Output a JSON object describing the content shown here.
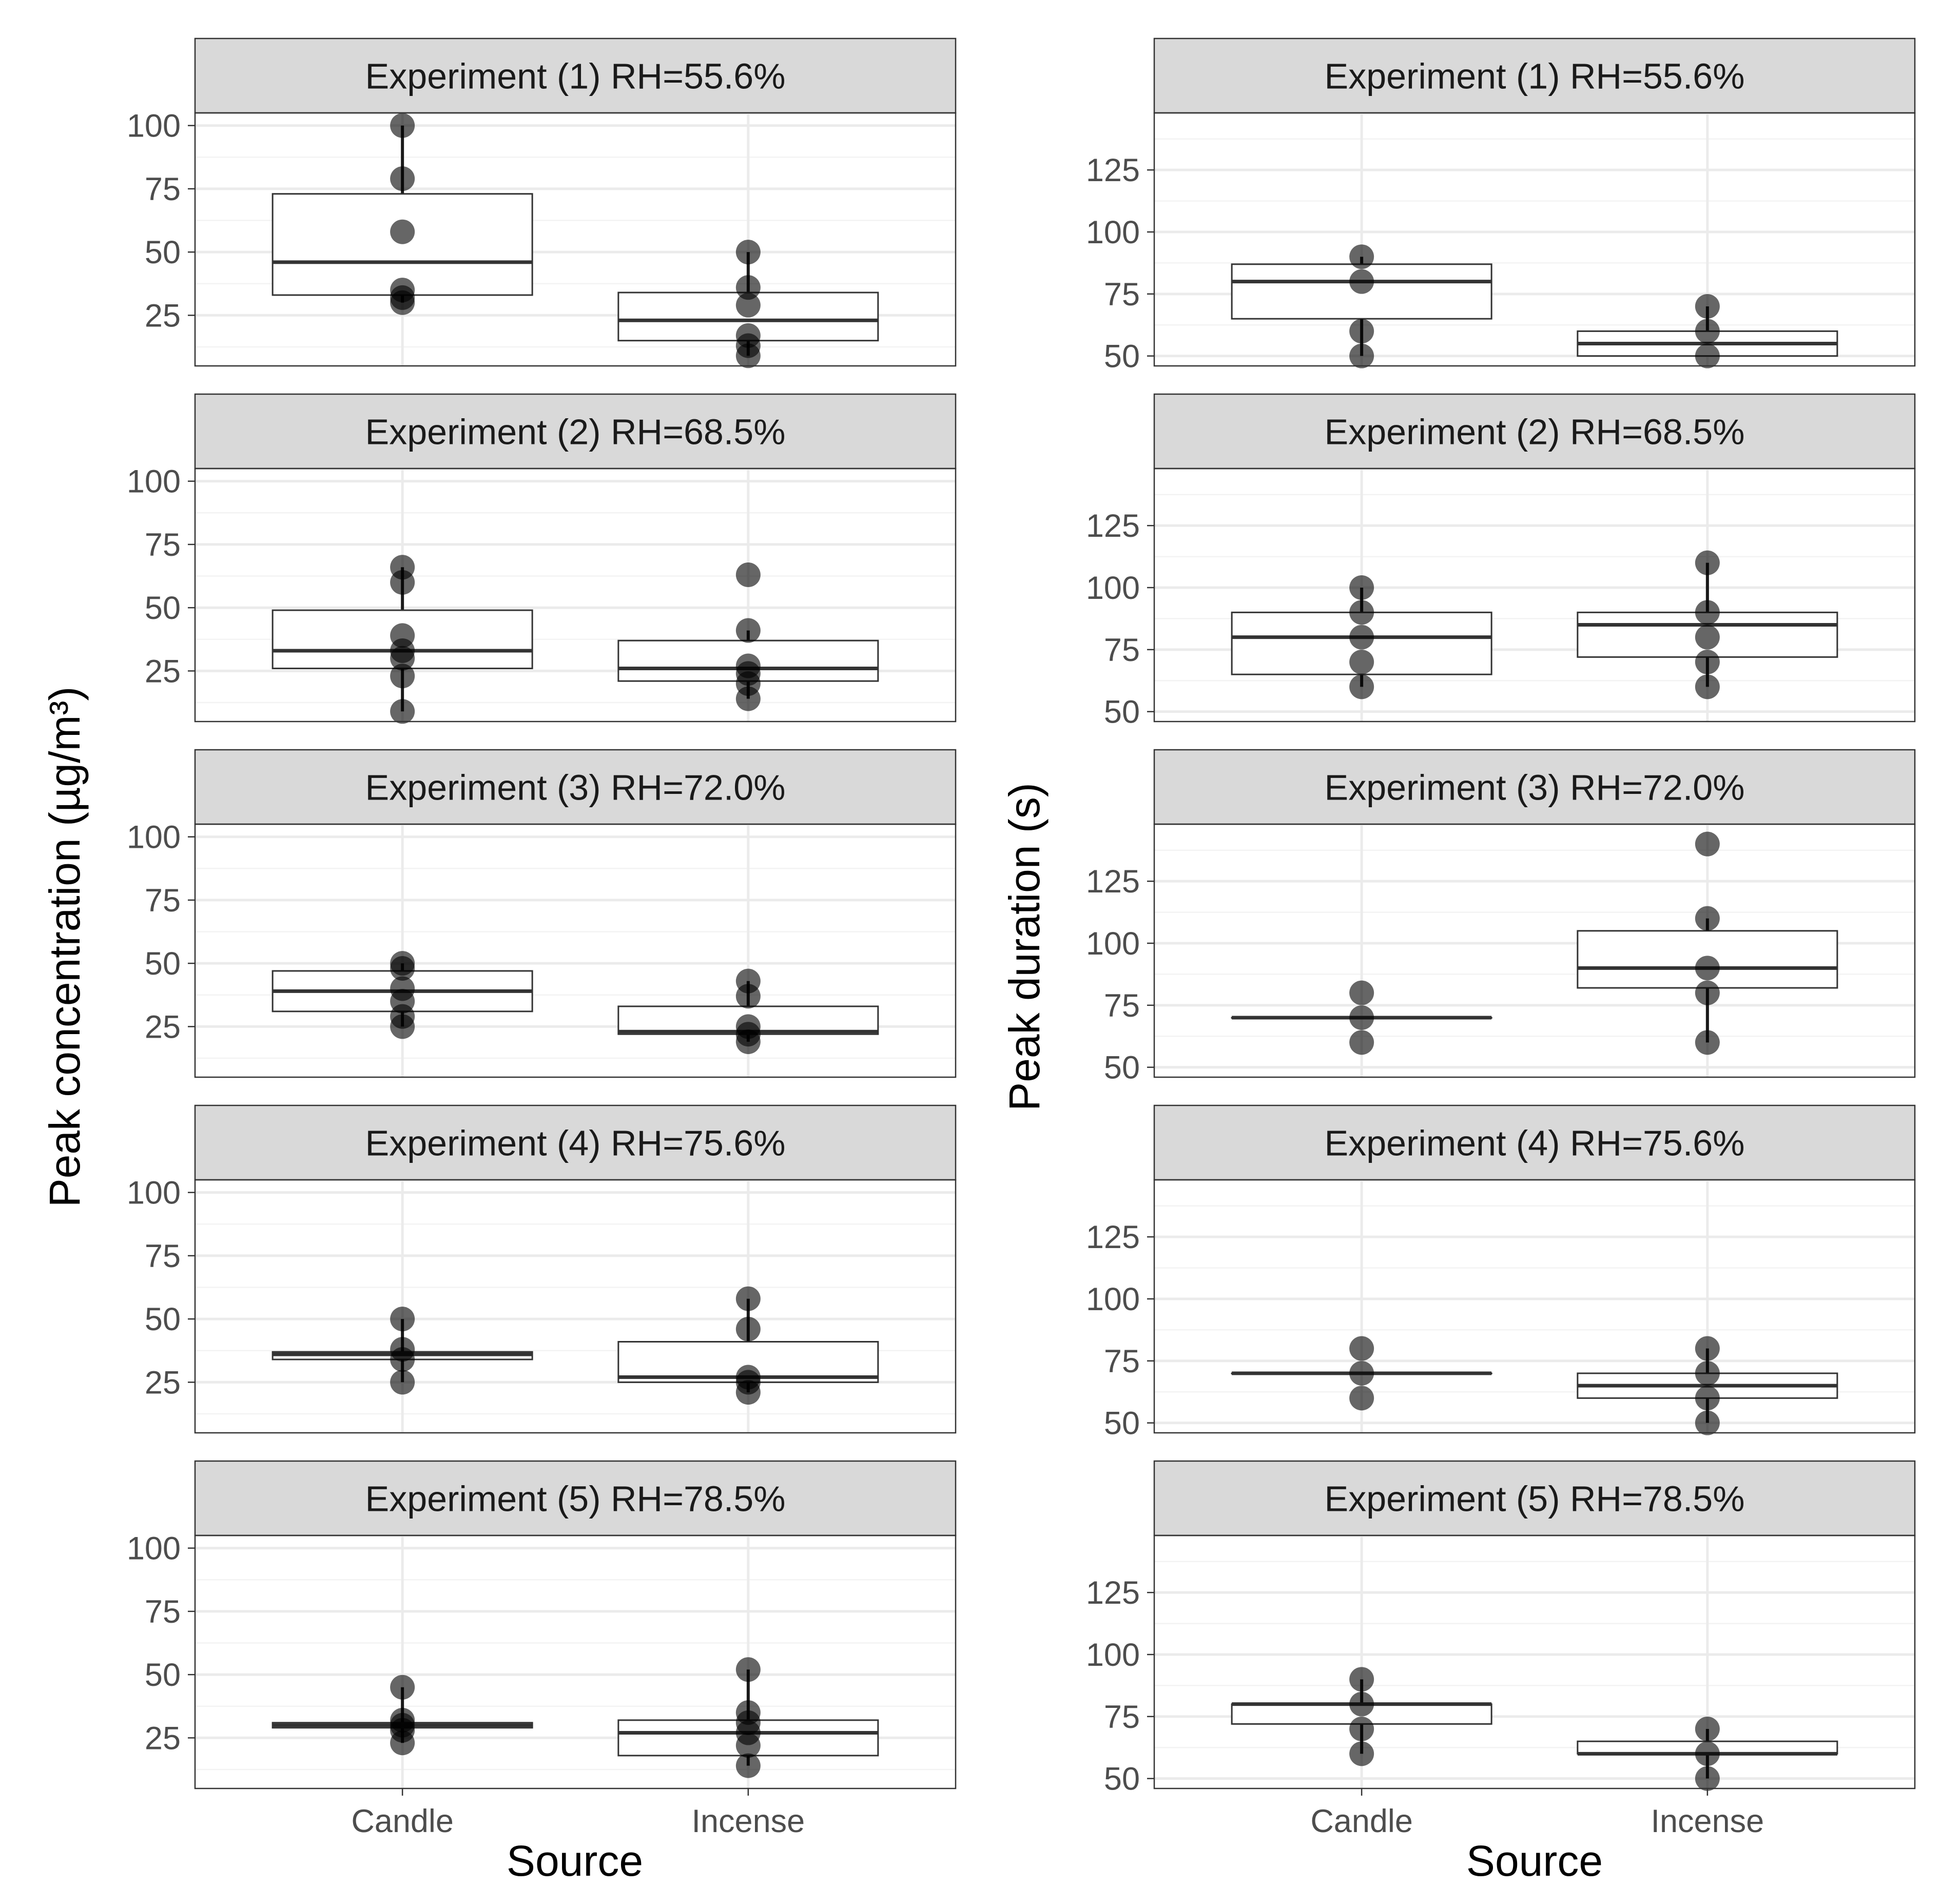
{
  "figure": {
    "left_ylabel": "Peak concentration (µg/m³)",
    "right_ylabel": "Peak duration (s)",
    "xlabel": "Source"
  },
  "chart_data": [
    {
      "type": "box",
      "id": "concentration",
      "ylabel": "Peak concentration (µg/m³)",
      "xlabel": "Source",
      "categories": [
        "Candle",
        "Incense"
      ],
      "ylim": [
        5,
        105
      ],
      "yticks": [
        25,
        50,
        75,
        100
      ],
      "yticklabels": [
        "25",
        "50",
        "75",
        "100"
      ],
      "grid": true,
      "facets": [
        {
          "title": "Experiment (1) RH=55.6%",
          "boxes": [
            {
              "category": "Candle",
              "min": 30,
              "q1": 33,
              "median": 46,
              "q3": 73,
              "max": 100,
              "points": [
                30,
                32,
                35,
                58,
                79,
                100
              ]
            },
            {
              "category": "Incense",
              "min": 9,
              "q1": 15,
              "median": 23,
              "q3": 34,
              "max": 50,
              "points": [
                9,
                13,
                17,
                29,
                36,
                50
              ]
            }
          ]
        },
        {
          "title": "Experiment (2) RH=68.5%",
          "boxes": [
            {
              "category": "Candle",
              "min": 9,
              "q1": 26,
              "median": 33,
              "q3": 49,
              "max": 66,
              "points": [
                9,
                23,
                30,
                33,
                39,
                60,
                66
              ]
            },
            {
              "category": "Incense",
              "min": 14,
              "q1": 21,
              "median": 26,
              "q3": 37,
              "max": 41,
              "points": [
                14,
                20,
                24,
                27,
                41,
                63
              ]
            }
          ]
        },
        {
          "title": "Experiment (3) RH=72.0%",
          "boxes": [
            {
              "category": "Candle",
              "min": 25,
              "q1": 31,
              "median": 39,
              "q3": 47,
              "max": 50,
              "points": [
                25,
                29,
                35,
                40,
                48,
                50
              ]
            },
            {
              "category": "Incense",
              "min": 19,
              "q1": 22,
              "median": 23,
              "q3": 33,
              "max": 43,
              "points": [
                19,
                22,
                25,
                37,
                43
              ]
            }
          ]
        },
        {
          "title": "Experiment (4) RH=75.6%",
          "boxes": [
            {
              "category": "Candle",
              "min": 25,
              "q1": 34,
              "median": 36,
              "q3": 37,
              "max": 50,
              "points": [
                25,
                34,
                38,
                50
              ]
            },
            {
              "category": "Incense",
              "min": 21,
              "q1": 25,
              "median": 27,
              "q3": 41,
              "max": 58,
              "points": [
                21,
                25,
                27,
                46,
                58
              ]
            }
          ]
        },
        {
          "title": "Experiment (5) RH=78.5%",
          "boxes": [
            {
              "category": "Candle",
              "min": 23,
              "q1": 29,
              "median": 30,
              "q3": 31,
              "max": 45,
              "points": [
                23,
                28,
                30,
                32,
                45
              ]
            },
            {
              "category": "Incense",
              "min": 14,
              "q1": 18,
              "median": 27,
              "q3": 32,
              "max": 52,
              "points": [
                14,
                22,
                27,
                31,
                35,
                52
              ]
            }
          ]
        }
      ]
    },
    {
      "type": "box",
      "id": "duration",
      "ylabel": "Peak duration (s)",
      "xlabel": "Source",
      "categories": [
        "Candle",
        "Incense"
      ],
      "ylim": [
        46,
        148
      ],
      "yticks": [
        50,
        75,
        100,
        125
      ],
      "yticklabels": [
        "50",
        "75",
        "100",
        "125"
      ],
      "grid": true,
      "facets": [
        {
          "title": "Experiment (1) RH=55.6%",
          "boxes": [
            {
              "category": "Candle",
              "min": 50,
              "q1": 65,
              "median": 80,
              "q3": 87,
              "max": 90,
              "points": [
                50,
                60,
                80,
                90
              ]
            },
            {
              "category": "Incense",
              "min": 50,
              "q1": 50,
              "median": 55,
              "q3": 60,
              "max": 70,
              "points": [
                50,
                60,
                70
              ]
            }
          ]
        },
        {
          "title": "Experiment (2) RH=68.5%",
          "boxes": [
            {
              "category": "Candle",
              "min": 60,
              "q1": 65,
              "median": 80,
              "q3": 90,
              "max": 100,
              "points": [
                60,
                70,
                80,
                90,
                100
              ]
            },
            {
              "category": "Incense",
              "min": 60,
              "q1": 72,
              "median": 85,
              "q3": 90,
              "max": 110,
              "points": [
                60,
                70,
                80,
                90,
                110
              ]
            }
          ]
        },
        {
          "title": "Experiment (3) RH=72.0%",
          "boxes": [
            {
              "category": "Candle",
              "min": 70,
              "q1": 70,
              "median": 70,
              "q3": 70,
              "max": 70,
              "points": [
                60,
                70,
                80
              ]
            },
            {
              "category": "Incense",
              "min": 60,
              "q1": 82,
              "median": 90,
              "q3": 105,
              "max": 110,
              "points": [
                60,
                80,
                90,
                110,
                140
              ]
            }
          ]
        },
        {
          "title": "Experiment (4) RH=75.6%",
          "boxes": [
            {
              "category": "Candle",
              "min": 70,
              "q1": 70,
              "median": 70,
              "q3": 70,
              "max": 70,
              "points": [
                60,
                70,
                80
              ]
            },
            {
              "category": "Incense",
              "min": 50,
              "q1": 60,
              "median": 65,
              "q3": 70,
              "max": 80,
              "points": [
                50,
                60,
                70,
                80
              ]
            }
          ]
        },
        {
          "title": "Experiment (5) RH=78.5%",
          "boxes": [
            {
              "category": "Candle",
              "min": 60,
              "q1": 72,
              "median": 80,
              "q3": 80,
              "max": 90,
              "points": [
                60,
                70,
                80,
                90
              ]
            },
            {
              "category": "Incense",
              "min": 50,
              "q1": 60,
              "median": 60,
              "q3": 65,
              "max": 70,
              "points": [
                50,
                60,
                70
              ]
            }
          ]
        }
      ]
    }
  ]
}
